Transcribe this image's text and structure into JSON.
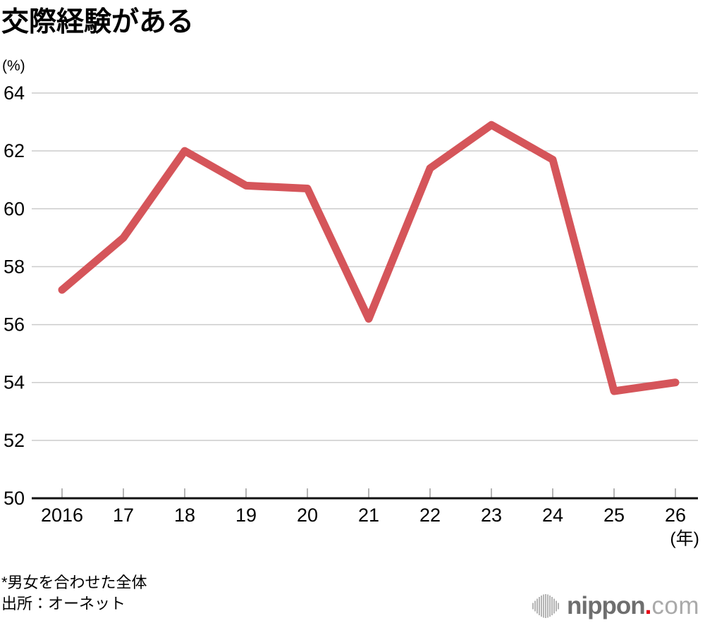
{
  "page": {
    "title": "交際経験がある",
    "unit_label": "(%)",
    "x_axis_unit": "(年)",
    "footnote": "*男女を合わせた全体",
    "source": "出所：オーネット",
    "logo": {
      "brand": "nippon",
      "dot": ".",
      "tld": "com",
      "icon": "soundwave-icon"
    }
  },
  "colors": {
    "line": "#d5555a",
    "grid": "#cccccc",
    "axis": "#111111",
    "logo_gray": "#6e6e6e",
    "logo_light_gray": "#a9a9a9",
    "logo_red": "#e60012"
  },
  "chart_data": {
    "type": "line",
    "title": "交際経験がある",
    "note": "*男女を合わせた全体",
    "source": "出所：オーネット",
    "x": [
      2016,
      2017,
      2018,
      2019,
      2020,
      2021,
      2022,
      2023,
      2024,
      2025,
      2026
    ],
    "x_labels": [
      "2016",
      "17",
      "18",
      "19",
      "20",
      "21",
      "22",
      "23",
      "24",
      "25",
      "26"
    ],
    "values": [
      57.2,
      59.0,
      62.0,
      60.8,
      60.7,
      56.2,
      61.4,
      62.9,
      61.7,
      53.7,
      54.0
    ],
    "ylabel": "(%)",
    "xlabel": "(年)",
    "ylim": [
      50,
      64
    ],
    "yticks": [
      50,
      52,
      54,
      56,
      58,
      60,
      62,
      64
    ],
    "grid": true,
    "legend": "none",
    "line_color": "#d5555a"
  }
}
